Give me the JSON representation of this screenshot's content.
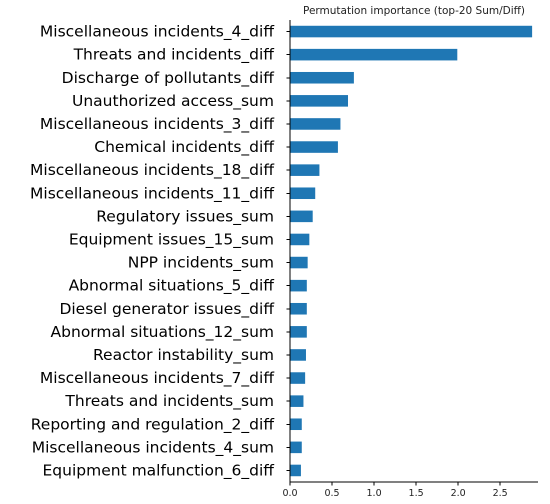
{
  "chart_data": {
    "type": "bar",
    "orientation": "horizontal",
    "title": "Permutation importance (top-20 Sum/Diff)",
    "xlabel": "",
    "ylabel": "",
    "xlim": [
      0,
      2.95
    ],
    "x_ticks": [
      "0.0",
      "0.5",
      "1.0",
      "1.5",
      "2.0",
      "2.5"
    ],
    "grid": false,
    "bar_color": "#1f77b4",
    "categories": [
      "Miscellaneous incidents_4_diff",
      "Threats and incidents_diff",
      "Discharge of pollutants_diff",
      "Unauthorized access_sum",
      "Miscellaneous incidents_3_diff",
      "Chemical incidents_diff",
      "Miscellaneous incidents_18_diff",
      "Miscellaneous incidents_11_diff",
      "Regulatory issues_sum",
      "Equipment issues_15_sum",
      "NPP incidents_sum",
      "Abnormal situations_5_diff",
      "Diesel generator issues_diff",
      "Abnormal situations_12_sum",
      "Reactor instability_sum",
      "Miscellaneous incidents_7_diff",
      "Threats and incidents_sum",
      "Reporting and regulation_2_diff",
      "Miscellaneous incidents_4_sum",
      "Equipment malfunction_6_diff"
    ],
    "values": [
      2.88,
      1.99,
      0.76,
      0.69,
      0.6,
      0.57,
      0.35,
      0.3,
      0.27,
      0.23,
      0.21,
      0.2,
      0.2,
      0.2,
      0.19,
      0.18,
      0.16,
      0.14,
      0.14,
      0.13
    ]
  }
}
